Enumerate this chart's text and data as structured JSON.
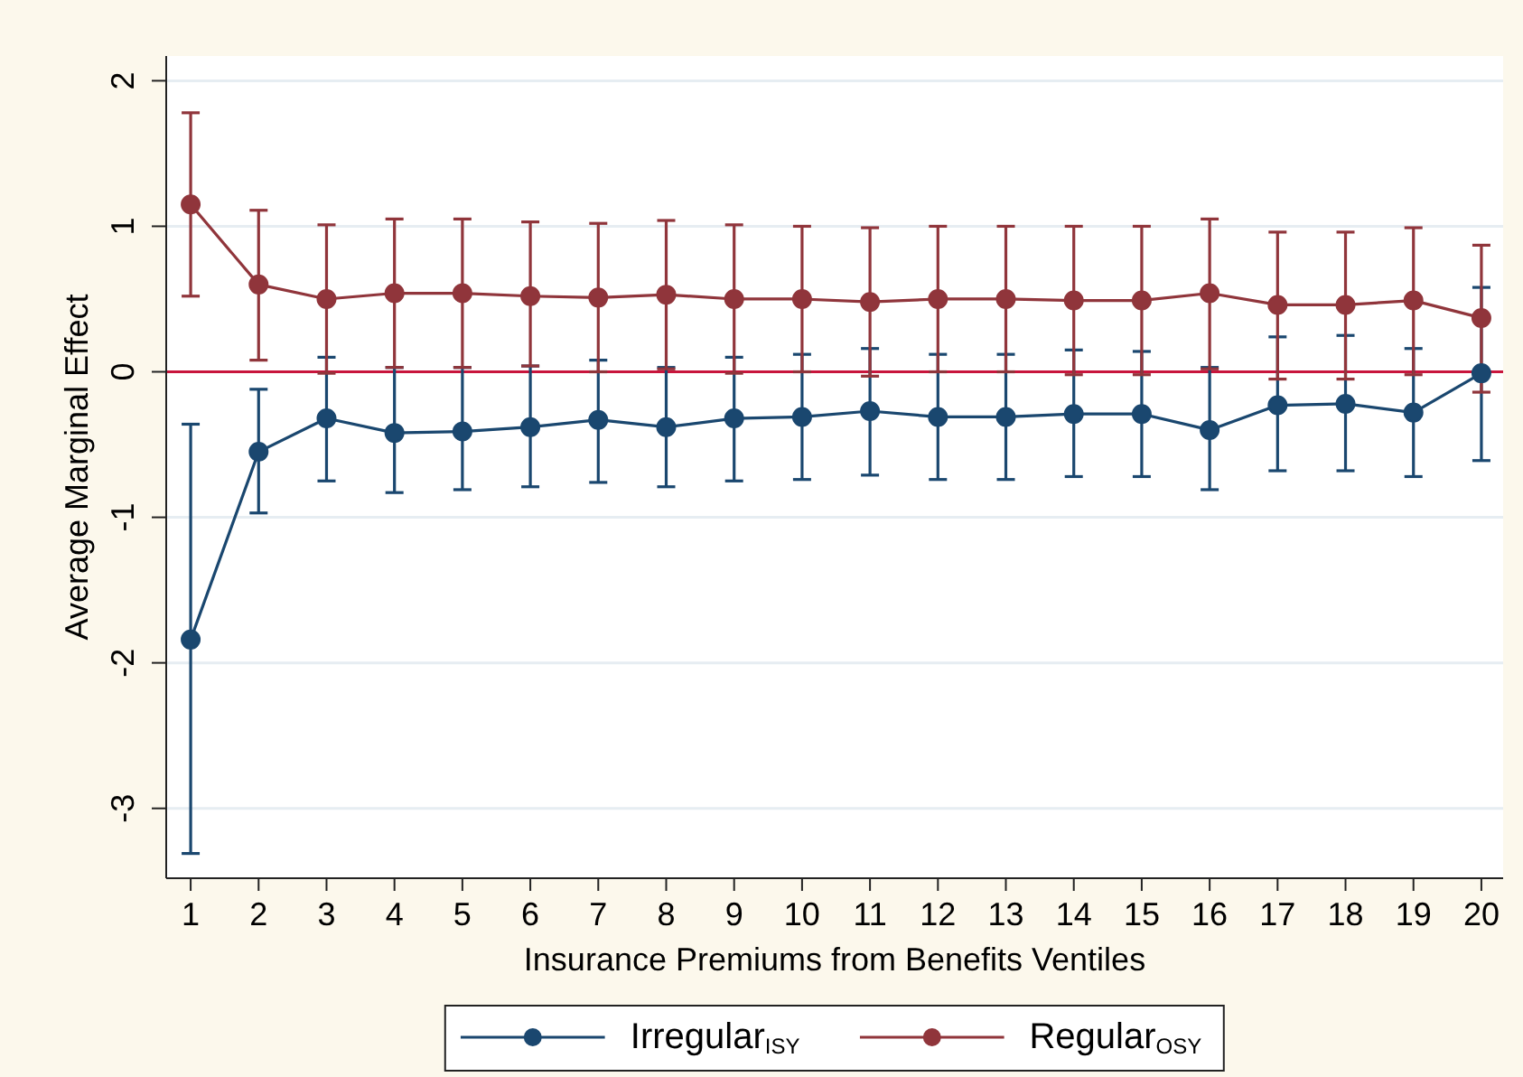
{
  "chart_data": {
    "type": "line",
    "xlabel": "Insurance Premiums from Benefits Ventiles",
    "ylabel": "Average Marginal Effect",
    "x": [
      1,
      2,
      3,
      4,
      5,
      6,
      7,
      8,
      9,
      10,
      11,
      12,
      13,
      14,
      15,
      16,
      17,
      18,
      19,
      20
    ],
    "xlim": [
      0.64,
      20.32
    ],
    "xticks": [
      1,
      2,
      3,
      4,
      5,
      6,
      7,
      8,
      9,
      10,
      11,
      12,
      13,
      14,
      15,
      16,
      17,
      18,
      19,
      20
    ],
    "ylim": [
      -3.48,
      2.17
    ],
    "yticks": [
      -3,
      -2,
      -1,
      0,
      1,
      2
    ],
    "series": [
      {
        "name": "Irregular$_{ISY}$",
        "color": "#1a476f",
        "values": [
          -1.84,
          -0.55,
          -0.32,
          -0.42,
          -0.41,
          -0.38,
          -0.33,
          -0.38,
          -0.32,
          -0.31,
          -0.27,
          -0.31,
          -0.31,
          -0.29,
          -0.29,
          -0.4,
          -0.23,
          -0.22,
          -0.28,
          -0.01
        ],
        "errors": [
          [
            -3.31,
            -0.36
          ],
          [
            -0.97,
            -0.12
          ],
          [
            -0.75,
            0.1
          ],
          [
            -0.83,
            0.03
          ],
          [
            -0.81,
            0.03
          ],
          [
            -0.79,
            0.04
          ],
          [
            -0.76,
            0.08
          ],
          [
            -0.79,
            0.03
          ],
          [
            -0.75,
            0.1
          ],
          [
            -0.74,
            0.12
          ],
          [
            -0.71,
            0.16
          ],
          [
            -0.74,
            0.12
          ],
          [
            -0.74,
            0.12
          ],
          [
            -0.72,
            0.15
          ],
          [
            -0.72,
            0.14
          ],
          [
            -0.81,
            0.03
          ],
          [
            -0.68,
            0.24
          ],
          [
            -0.68,
            0.25
          ],
          [
            -0.72,
            0.16
          ],
          [
            -0.61,
            0.58
          ]
        ]
      },
      {
        "name": "Regular$_{OSY}$",
        "color": "#90353b",
        "values": [
          1.15,
          0.6,
          0.5,
          0.54,
          0.54,
          0.52,
          0.51,
          0.53,
          0.5,
          0.5,
          0.48,
          0.5,
          0.5,
          0.49,
          0.49,
          0.54,
          0.46,
          0.46,
          0.49,
          0.37
        ],
        "errors": [
          [
            0.52,
            1.78
          ],
          [
            0.08,
            1.11
          ],
          [
            -0.01,
            1.01
          ],
          [
            0.03,
            1.05
          ],
          [
            0.03,
            1.05
          ],
          [
            0.04,
            1.03
          ],
          [
            0,
            1.02
          ],
          [
            0.02,
            1.04
          ],
          [
            -0.01,
            1.01
          ],
          [
            0,
            1.0
          ],
          [
            -0.03,
            0.99
          ],
          [
            0,
            1.0
          ],
          [
            0,
            1.0
          ],
          [
            -0.02,
            1.0
          ],
          [
            -0.02,
            1.0
          ],
          [
            0.02,
            1.05
          ],
          [
            -0.05,
            0.96
          ],
          [
            -0.05,
            0.96
          ],
          [
            -0.02,
            0.99
          ],
          [
            -0.14,
            0.87
          ]
        ]
      }
    ],
    "ref_lines": [
      {
        "axis": "y",
        "value": 0,
        "color": "#c8153c"
      }
    ],
    "grid": "y",
    "legend": "bottom",
    "marker": "circle",
    "line_style": "solid"
  }
}
